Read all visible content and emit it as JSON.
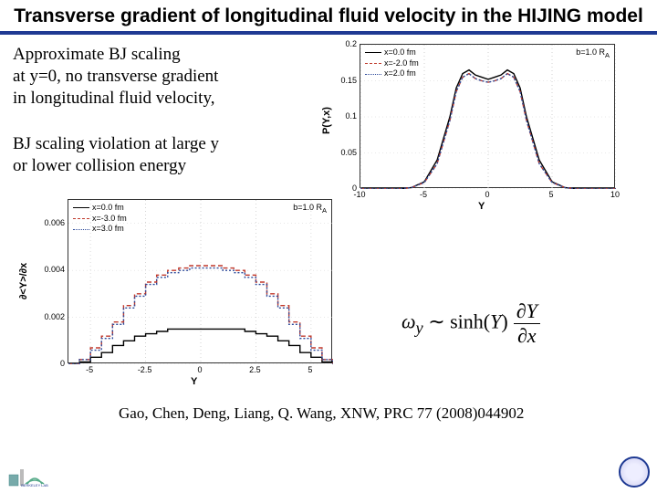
{
  "title": "Transverse gradient of longitudinal fluid velocity in the HIJING model",
  "text1": "Approximate BJ scaling\nat y=0,  no transverse gradient\nin longitudinal fluid velocity,",
  "text2": "BJ scaling violation at large y\nor lower collision  energy",
  "citation": "Gao, Chen, Deng, Liang, Q. Wang, XNW, PRC 77 (2008)044902",
  "formula_html": "ω<sub>y</sub> ∼ sinh(<i>Y</i>)<span style='display:inline-block;vertical-align:middle;margin-left:4px'><span style='display:block;border-bottom:1px solid #000;padding:0 2px;font-style:italic'>∂Y</span><span style='display:block;padding:0 2px;font-style:italic'>∂x</span></span>",
  "chart_top": {
    "type": "line",
    "x": [
      -10,
      -8,
      -7,
      -6,
      -5,
      -4,
      -3,
      -2.5,
      -2,
      -1.5,
      -1,
      -0.5,
      0,
      0.5,
      1,
      1.5,
      2,
      2.5,
      3,
      4,
      5,
      6,
      7,
      8,
      10
    ],
    "series": [
      {
        "label": "x=0.0 fm",
        "color": "#000000",
        "dash": "",
        "y": [
          0,
          0,
          0,
          0.002,
          0.01,
          0.04,
          0.1,
          0.14,
          0.16,
          0.165,
          0.158,
          0.155,
          0.152,
          0.155,
          0.158,
          0.165,
          0.16,
          0.14,
          0.1,
          0.04,
          0.01,
          0.002,
          0,
          0,
          0
        ]
      },
      {
        "label": "x=-2.0 fm",
        "color": "#c0392b",
        "dash": "5,3",
        "y": [
          0,
          0,
          0,
          0.002,
          0.009,
          0.035,
          0.095,
          0.135,
          0.155,
          0.16,
          0.153,
          0.15,
          0.148,
          0.15,
          0.153,
          0.16,
          0.155,
          0.135,
          0.095,
          0.035,
          0.009,
          0.002,
          0,
          0,
          0
        ]
      },
      {
        "label": "x=2.0 fm",
        "color": "#2e4b9b",
        "dash": "2,2",
        "y": [
          0,
          0,
          0,
          0.002,
          0.009,
          0.035,
          0.095,
          0.135,
          0.155,
          0.16,
          0.153,
          0.15,
          0.148,
          0.15,
          0.153,
          0.16,
          0.155,
          0.135,
          0.095,
          0.035,
          0.009,
          0.002,
          0,
          0,
          0
        ]
      }
    ],
    "param": "b=1.0 R_A",
    "xlabel": "Y",
    "ylabel": "P(Y,x)",
    "xlim": [
      -10,
      10
    ],
    "xticks": [
      -10,
      -5,
      0,
      5,
      10
    ],
    "ylim": [
      0,
      0.2
    ],
    "yticks": [
      0,
      0.05,
      0.1,
      0.15,
      0.2
    ],
    "background": "#ffffff",
    "grid_color": "#d0d0d0",
    "label_fontsize": 11
  },
  "chart_bottom": {
    "type": "step",
    "x": [
      -6,
      -5.5,
      -5,
      -4.5,
      -4,
      -3.5,
      -3,
      -2.5,
      -2,
      -1.5,
      -1,
      -0.5,
      0,
      0.5,
      1,
      1.5,
      2,
      2.5,
      3,
      3.5,
      4,
      4.5,
      5,
      5.5,
      6
    ],
    "series": [
      {
        "label": "x=0.0 fm",
        "color": "#000000",
        "dash": "",
        "y": [
          0,
          0.0001,
          0.0003,
          0.0005,
          0.0008,
          0.001,
          0.0012,
          0.0013,
          0.0014,
          0.0015,
          0.0015,
          0.0015,
          0.0015,
          0.0015,
          0.0015,
          0.0015,
          0.0014,
          0.0013,
          0.0012,
          0.001,
          0.0008,
          0.0005,
          0.0003,
          0.0001,
          0
        ]
      },
      {
        "label": "x=-3.0 fm",
        "color": "#c0392b",
        "dash": "5,3",
        "y": [
          0,
          0.0002,
          0.0007,
          0.0012,
          0.0018,
          0.0025,
          0.003,
          0.0035,
          0.0038,
          0.004,
          0.0041,
          0.0042,
          0.0042,
          0.0042,
          0.0041,
          0.004,
          0.0038,
          0.0035,
          0.003,
          0.0025,
          0.0018,
          0.0012,
          0.0007,
          0.0002,
          0
        ]
      },
      {
        "label": "x=3.0 fm",
        "color": "#2e4b9b",
        "dash": "2,2",
        "y": [
          0,
          0.0002,
          0.0006,
          0.0011,
          0.0017,
          0.0024,
          0.0029,
          0.0034,
          0.0037,
          0.0039,
          0.004,
          0.0041,
          0.0041,
          0.0041,
          0.004,
          0.0039,
          0.0037,
          0.0034,
          0.0029,
          0.0024,
          0.0017,
          0.0011,
          0.0006,
          0.0002,
          0
        ]
      }
    ],
    "param": "b=1.0 R_A",
    "xlabel": "Y",
    "ylabel": "∂<Y>/∂x",
    "xlim": [
      -6,
      6
    ],
    "xticks": [
      -5,
      -2.5,
      0,
      2.5,
      5
    ],
    "ylim": [
      0,
      0.007
    ],
    "yticks": [
      0,
      0.002,
      0.004,
      0.006
    ],
    "background": "#ffffff",
    "grid_color": "#d0d0d0",
    "label_fontsize": 11
  }
}
